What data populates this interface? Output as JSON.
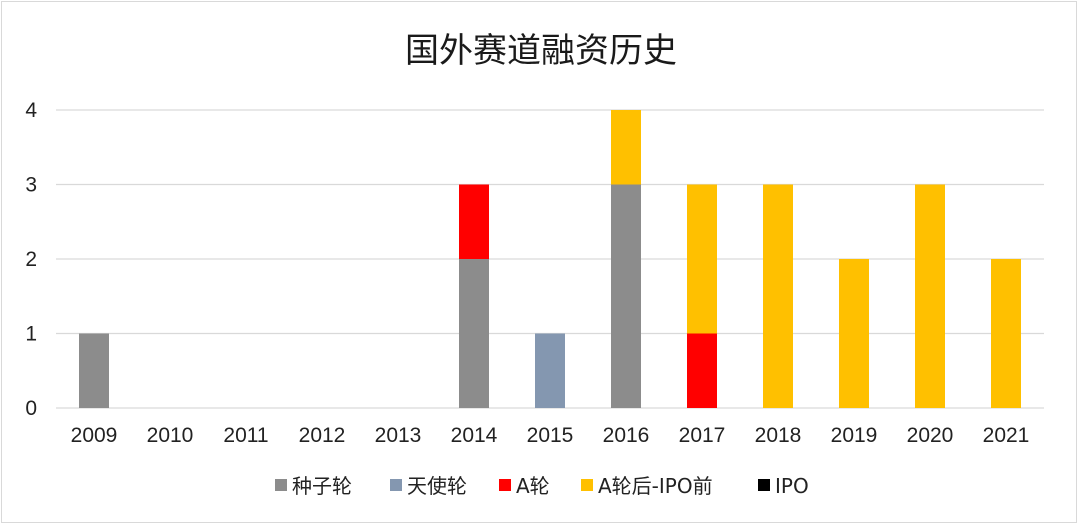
{
  "chart_data": {
    "type": "bar",
    "stacked": true,
    "title": "国外赛道融资历史",
    "categories": [
      "2009",
      "2010",
      "2011",
      "2012",
      "2013",
      "2014",
      "2015",
      "2016",
      "2017",
      "2018",
      "2019",
      "2020",
      "2021"
    ],
    "series": [
      {
        "name": "种子轮",
        "color": "#8c8c8c",
        "values": [
          1,
          0,
          0,
          0,
          0,
          2,
          0,
          3,
          0,
          0,
          0,
          0,
          0
        ]
      },
      {
        "name": "天使轮",
        "color": "#8497b0",
        "values": [
          0,
          0,
          0,
          0,
          0,
          0,
          1,
          0,
          0,
          0,
          0,
          0,
          0
        ]
      },
      {
        "name": "A轮",
        "color": "#ff0000",
        "values": [
          0,
          0,
          0,
          0,
          0,
          1,
          0,
          0,
          1,
          0,
          0,
          0,
          0
        ]
      },
      {
        "name": "A轮后-IPO前",
        "color": "#ffc000",
        "values": [
          0,
          0,
          0,
          0,
          0,
          0,
          0,
          1,
          2,
          3,
          2,
          3,
          2
        ]
      },
      {
        "name": "IPO",
        "color": "#000000",
        "values": [
          0,
          0,
          0,
          0,
          0,
          0,
          0,
          0,
          0,
          0,
          0,
          0,
          0
        ]
      }
    ],
    "ylim": [
      0,
      4
    ],
    "yticks": [
      0,
      1,
      2,
      3,
      4
    ],
    "grid": true,
    "legend_position": "bottom"
  }
}
